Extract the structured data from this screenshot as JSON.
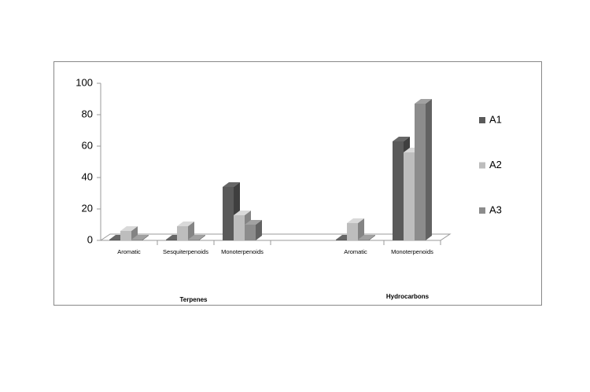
{
  "chart_data": {
    "type": "bar3d",
    "groups": [
      {
        "label": "Terpenes",
        "categories": [
          "Aromatic",
          "Sesquiterpenoids",
          "Monoterpenoids"
        ]
      },
      {
        "label": "Hydrocarbons",
        "categories": [
          "Aromatic",
          "Monoterpenoids"
        ]
      }
    ],
    "series": [
      {
        "name": "A1",
        "color": "#5a5a5a",
        "values": [
          0.5,
          0.5,
          34,
          0.5,
          63
        ]
      },
      {
        "name": "A2",
        "color": "#bdbdbd",
        "values": [
          6,
          9,
          16,
          11,
          56
        ]
      },
      {
        "name": "A3",
        "color": "#8c8c8c",
        "values": [
          0.5,
          0.5,
          10,
          0.5,
          87
        ]
      }
    ],
    "ylim": [
      0,
      100
    ],
    "yticks": [
      0,
      20,
      40,
      60,
      80,
      100
    ],
    "grid": false,
    "legend": "right"
  }
}
